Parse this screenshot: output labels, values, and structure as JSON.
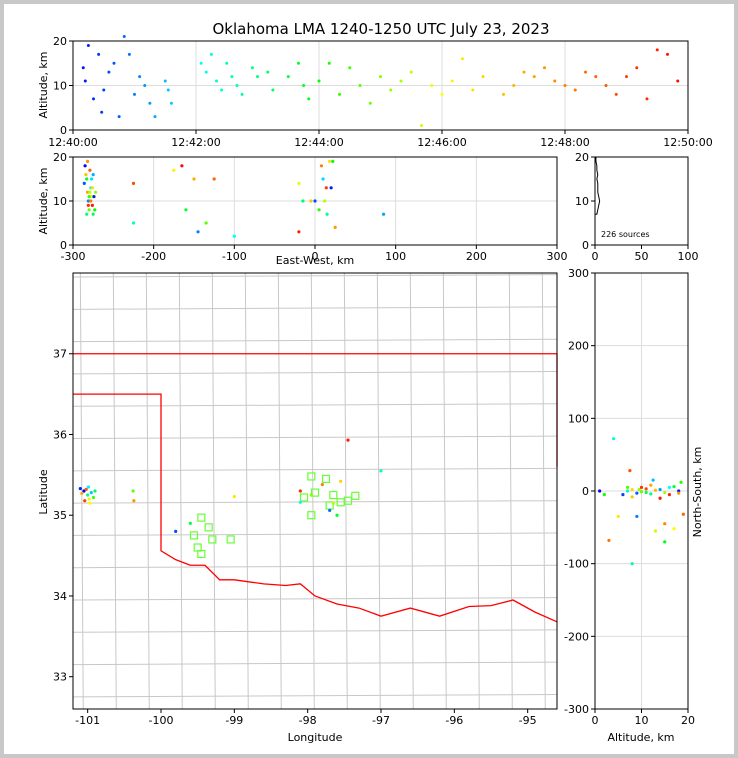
{
  "title": "Oklahoma LMA 1240-1250 UTC July 23, 2023",
  "colors": {
    "time_scale": [
      "#0000ff",
      "#00ffff",
      "#00ff00",
      "#ffff00",
      "#ff8000",
      "#ff0000"
    ],
    "state_border": "#ff0000",
    "county_lines": "#c8c8c8",
    "station_marker": "#66ff33",
    "histogram": "#000000"
  },
  "chart_data": [
    {
      "id": "altitude_vs_time",
      "type": "scatter",
      "ylabel": "Altitude, km",
      "xlim": [
        "12:40:00",
        "12:50:00"
      ],
      "ylim": [
        0,
        20
      ],
      "xticks": [
        "12:40:00",
        "12:42:00",
        "12:44:00",
        "12:46:00",
        "12:48:00",
        "12:50:00"
      ],
      "yticks": [
        0,
        10,
        20
      ],
      "grid": true,
      "points": [
        [
          "12:40:10",
          14
        ],
        [
          "12:40:12",
          11
        ],
        [
          "12:40:15",
          19
        ],
        [
          "12:40:20",
          7
        ],
        [
          "12:40:25",
          17
        ],
        [
          "12:40:28",
          4
        ],
        [
          "12:40:30",
          9
        ],
        [
          "12:40:35",
          13
        ],
        [
          "12:40:40",
          15
        ],
        [
          "12:40:45",
          3
        ],
        [
          "12:40:50",
          21
        ],
        [
          "12:40:55",
          17
        ],
        [
          "12:41:00",
          8
        ],
        [
          "12:41:05",
          12
        ],
        [
          "12:41:10",
          10
        ],
        [
          "12:41:15",
          6
        ],
        [
          "12:41:20",
          3
        ],
        [
          "12:41:30",
          11
        ],
        [
          "12:41:33",
          9
        ],
        [
          "12:41:36",
          6
        ],
        [
          "12:42:05",
          15
        ],
        [
          "12:42:10",
          13
        ],
        [
          "12:42:15",
          17
        ],
        [
          "12:42:20",
          11
        ],
        [
          "12:42:25",
          9
        ],
        [
          "12:42:30",
          15
        ],
        [
          "12:42:35",
          12
        ],
        [
          "12:42:40",
          10
        ],
        [
          "12:42:45",
          8
        ],
        [
          "12:42:55",
          14
        ],
        [
          "12:43:00",
          12
        ],
        [
          "12:43:10",
          13
        ],
        [
          "12:43:15",
          9
        ],
        [
          "12:43:30",
          12
        ],
        [
          "12:43:40",
          15
        ],
        [
          "12:43:45",
          10
        ],
        [
          "12:43:50",
          7
        ],
        [
          "12:44:00",
          11
        ],
        [
          "12:44:10",
          15
        ],
        [
          "12:44:20",
          8
        ],
        [
          "12:44:30",
          14
        ],
        [
          "12:44:40",
          10
        ],
        [
          "12:44:50",
          6
        ],
        [
          "12:45:00",
          12
        ],
        [
          "12:45:10",
          9
        ],
        [
          "12:45:20",
          11
        ],
        [
          "12:45:30",
          13
        ],
        [
          "12:45:40",
          1
        ],
        [
          "12:45:50",
          10
        ],
        [
          "12:46:00",
          8
        ],
        [
          "12:46:10",
          11
        ],
        [
          "12:46:20",
          16
        ],
        [
          "12:46:30",
          9
        ],
        [
          "12:46:40",
          12
        ],
        [
          "12:47:00",
          8
        ],
        [
          "12:47:10",
          10
        ],
        [
          "12:47:20",
          13
        ],
        [
          "12:47:30",
          12
        ],
        [
          "12:47:40",
          14
        ],
        [
          "12:47:50",
          11
        ],
        [
          "12:48:00",
          10
        ],
        [
          "12:48:10",
          9
        ],
        [
          "12:48:20",
          13
        ],
        [
          "12:48:30",
          12
        ],
        [
          "12:48:40",
          10
        ],
        [
          "12:48:50",
          8
        ],
        [
          "12:49:00",
          12
        ],
        [
          "12:49:10",
          14
        ],
        [
          "12:49:20",
          7
        ],
        [
          "12:49:30",
          18
        ],
        [
          "12:49:40",
          17
        ],
        [
          "12:49:50",
          11
        ]
      ]
    },
    {
      "id": "altitude_vs_eastwest",
      "type": "scatter",
      "xlabel": "East-West, km",
      "ylabel": "Altitude, km",
      "xlim": [
        -300,
        300
      ],
      "ylim": [
        0,
        20
      ],
      "xticks": [
        -300,
        -200,
        -100,
        0,
        100,
        200,
        300
      ],
      "yticks": [
        0,
        10,
        20
      ],
      "grid": true,
      "points": [
        [
          -285,
          18
        ],
        [
          -283,
          15
        ],
        [
          -282,
          12
        ],
        [
          -281,
          10
        ],
        [
          -280,
          8
        ],
        [
          -279,
          17
        ],
        [
          -278,
          13
        ],
        [
          -277,
          11
        ],
        [
          -276,
          9
        ],
        [
          -275,
          7
        ],
        [
          -284,
          16
        ],
        [
          -286,
          14
        ],
        [
          -280,
          11
        ],
        [
          -278,
          10
        ],
        [
          -277,
          15
        ],
        [
          -279,
          12
        ],
        [
          -281,
          9
        ],
        [
          -283,
          7
        ],
        [
          -276,
          13
        ],
        [
          -274,
          11
        ],
        [
          -273,
          8
        ],
        [
          -282,
          19
        ],
        [
          -275,
          16
        ],
        [
          -272,
          12
        ],
        [
          -225,
          14
        ],
        [
          -225,
          5
        ],
        [
          -175,
          17
        ],
        [
          -165,
          18
        ],
        [
          -160,
          8
        ],
        [
          -150,
          15
        ],
        [
          -145,
          3
        ],
        [
          -135,
          5
        ],
        [
          -125,
          15
        ],
        [
          -100,
          2
        ],
        [
          -20,
          14
        ],
        [
          -20,
          3
        ],
        [
          -15,
          10
        ],
        [
          -5,
          10
        ],
        [
          0,
          10
        ],
        [
          5,
          8
        ],
        [
          8,
          18
        ],
        [
          10,
          15
        ],
        [
          12,
          10
        ],
        [
          14,
          13
        ],
        [
          15,
          7
        ],
        [
          18,
          19
        ],
        [
          20,
          13
        ],
        [
          22,
          19
        ],
        [
          25,
          4
        ],
        [
          85,
          7
        ]
      ]
    },
    {
      "id": "altitude_histogram",
      "type": "bar",
      "orientation": "horizontal",
      "annotation": "226 sources",
      "xlim": [
        0,
        100
      ],
      "ylim": [
        0,
        20
      ],
      "xticks": [
        0,
        50,
        100
      ],
      "yticks": [
        0,
        10,
        20
      ],
      "altitudes": [
        7,
        8,
        9,
        10,
        11,
        12,
        13,
        14,
        15,
        16,
        17,
        18,
        19,
        20
      ],
      "counts": [
        2,
        3,
        4,
        5,
        4,
        3,
        3,
        3,
        2,
        3,
        2,
        2,
        1,
        1
      ]
    },
    {
      "id": "plan_view",
      "type": "scatter",
      "xlabel": "Longitude",
      "ylabel": "Latitude",
      "xlim": [
        -101.2,
        -94.6
      ],
      "ylim": [
        32.6,
        38
      ],
      "xticks": [
        -101,
        -100,
        -99,
        -98,
        -97,
        -96,
        -95
      ],
      "yticks": [
        33,
        34,
        35,
        36,
        37
      ],
      "stations": [
        [
          -97.95,
          35.48
        ],
        [
          -97.75,
          35.45
        ],
        [
          -98.05,
          35.22
        ],
        [
          -97.9,
          35.28
        ],
        [
          -97.65,
          35.25
        ],
        [
          -97.55,
          35.16
        ],
        [
          -97.35,
          35.24
        ],
        [
          -97.45,
          35.18
        ],
        [
          -97.7,
          35.12
        ],
        [
          -97.95,
          35.0
        ],
        [
          -99.45,
          34.97
        ],
        [
          -99.35,
          34.85
        ],
        [
          -99.55,
          34.75
        ],
        [
          -99.3,
          34.7
        ],
        [
          -99.05,
          34.7
        ],
        [
          -99.5,
          34.6
        ],
        [
          -99.45,
          34.52
        ]
      ],
      "points": [
        [
          -101.05,
          35.3
        ],
        [
          -101.0,
          35.25
        ],
        [
          -100.98,
          35.2
        ],
        [
          -101.02,
          35.32
        ],
        [
          -100.95,
          35.28
        ],
        [
          -100.92,
          35.22
        ],
        [
          -101.08,
          35.27
        ],
        [
          -101.1,
          35.33
        ],
        [
          -100.9,
          35.3
        ],
        [
          -100.97,
          35.15
        ],
        [
          -101.04,
          35.18
        ],
        [
          -100.99,
          35.35
        ],
        [
          -100.38,
          35.3
        ],
        [
          -100.37,
          35.18
        ],
        [
          -99.8,
          34.8
        ],
        [
          -99.6,
          34.9
        ],
        [
          -99.0,
          35.23
        ],
        [
          -98.1,
          35.3
        ],
        [
          -98.1,
          35.16
        ],
        [
          -97.95,
          35.25
        ],
        [
          -97.8,
          35.38
        ],
        [
          -97.7,
          35.06
        ],
        [
          -97.6,
          35.0
        ],
        [
          -97.55,
          35.42
        ],
        [
          -97.45,
          35.93
        ],
        [
          -97.0,
          35.55
        ],
        [
          -97.65,
          35.15
        ]
      ]
    },
    {
      "id": "northsouth_vs_altitude",
      "type": "scatter",
      "xlabel": "Altitude, km",
      "ylabel": "North-South, km",
      "xlim": [
        0,
        20
      ],
      "ylim": [
        -300,
        300
      ],
      "xticks": [
        0,
        10,
        20
      ],
      "yticks": [
        -300,
        -200,
        -100,
        0,
        100,
        200,
        300
      ],
      "grid": true,
      "points": [
        [
          1,
          0
        ],
        [
          2,
          -5
        ],
        [
          3,
          -68
        ],
        [
          4,
          72
        ],
        [
          5,
          -35
        ],
        [
          6,
          -5
        ],
        [
          7,
          5
        ],
        [
          7.5,
          28
        ],
        [
          8,
          -100
        ],
        [
          8,
          -8
        ],
        [
          9,
          -35
        ],
        [
          9.5,
          2
        ],
        [
          10,
          5
        ],
        [
          11,
          -2
        ],
        [
          12,
          8
        ],
        [
          12.5,
          15
        ],
        [
          13,
          -55
        ],
        [
          14,
          -10
        ],
        [
          15,
          -70
        ],
        [
          15,
          -45
        ],
        [
          16,
          5
        ],
        [
          17,
          -52
        ],
        [
          18,
          0
        ],
        [
          18.5,
          12
        ],
        [
          19,
          -32
        ],
        [
          7,
          0
        ],
        [
          8,
          2
        ],
        [
          9,
          -3
        ],
        [
          10,
          -1
        ],
        [
          11,
          3
        ],
        [
          12,
          -4
        ],
        [
          13,
          1
        ],
        [
          14,
          2
        ],
        [
          15,
          -2
        ],
        [
          16,
          -5
        ],
        [
          17,
          6
        ],
        [
          18,
          -3
        ]
      ]
    }
  ]
}
